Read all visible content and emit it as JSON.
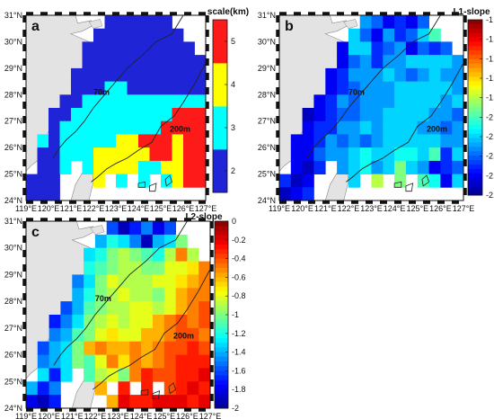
{
  "axes": {
    "lat_ticks": [
      "24°N",
      "25°N",
      "26°N",
      "27°N",
      "28°N",
      "29°N",
      "30°N",
      "31°N"
    ],
    "lon_ticks": [
      "119°E",
      "120°E",
      "121°E",
      "122°E",
      "123°E",
      "124°E",
      "125°E",
      "126°E",
      "127°E"
    ]
  },
  "isobaths": {
    "inner": "70m",
    "outer": "200m"
  },
  "colors": {
    "land": "#e3e3e3",
    "coast": "#8a8a8a",
    "frame_dark": "#111111",
    "scale_palette": [
      "#1f24d6",
      "#00ffff",
      "#ffff00",
      "#ff1a1a"
    ]
  },
  "chart_data": [
    {
      "panel": "a",
      "type": "heatmap",
      "colorbar_title": "scale(km)",
      "colorbar_ticks": [
        "2",
        "3",
        "4",
        "5"
      ],
      "xlim": [
        119,
        127
      ],
      "ylim": [
        24,
        31
      ],
      "grid_x": [
        119.5,
        120,
        120.5,
        121,
        121.5,
        122,
        122.5,
        123,
        123.5,
        124,
        124.5,
        125,
        125.5,
        126,
        126.5,
        127
      ],
      "grid_y": [
        30.75,
        30.25,
        29.75,
        29.25,
        28.75,
        28.25,
        27.75,
        27.25,
        26.75,
        26.25,
        25.75,
        25.25,
        24.75,
        24.25
      ],
      "values": [
        [
          null,
          null,
          null,
          null,
          null,
          null,
          null,
          2,
          2,
          2,
          2,
          2,
          2,
          null,
          null,
          null
        ],
        [
          null,
          null,
          null,
          null,
          null,
          null,
          2,
          2,
          2,
          2,
          2,
          2,
          2,
          2,
          null,
          null
        ],
        [
          null,
          null,
          null,
          null,
          null,
          2,
          2,
          2,
          2,
          2,
          2,
          2,
          2,
          2,
          2,
          null
        ],
        [
          null,
          null,
          null,
          null,
          null,
          2,
          2,
          2,
          2,
          2,
          2,
          2,
          2,
          2,
          2,
          2
        ],
        [
          null,
          null,
          null,
          null,
          2,
          2,
          2,
          2,
          2,
          2,
          2,
          2,
          2,
          2,
          2,
          2
        ],
        [
          null,
          null,
          null,
          null,
          2,
          2,
          2,
          3,
          3,
          2,
          2,
          2,
          2,
          2,
          2,
          2
        ],
        [
          null,
          null,
          null,
          2,
          2,
          3,
          3,
          3,
          3,
          3,
          3,
          3,
          3,
          3,
          3,
          3
        ],
        [
          null,
          null,
          2,
          2,
          3,
          3,
          3,
          3,
          3,
          3,
          3,
          3,
          3,
          5,
          5,
          5
        ],
        [
          null,
          null,
          2,
          3,
          3,
          3,
          3,
          3,
          3,
          3,
          3,
          3,
          5,
          5,
          5,
          5
        ],
        [
          null,
          3,
          2,
          3,
          3,
          3,
          3,
          3,
          4,
          4,
          5,
          5,
          5,
          4,
          5,
          5
        ],
        [
          null,
          2,
          2,
          3,
          3,
          3,
          4,
          4,
          4,
          4,
          4,
          5,
          5,
          4,
          5,
          5
        ],
        [
          null,
          2,
          2,
          3,
          null,
          3,
          4,
          4,
          4,
          4,
          3,
          3,
          4,
          4,
          5,
          5
        ],
        [
          2,
          2,
          2,
          null,
          null,
          null,
          4,
          null,
          3,
          null,
          3,
          null,
          3,
          4,
          5,
          5
        ],
        [
          2,
          2,
          2,
          null,
          null,
          null,
          null,
          null,
          null,
          null,
          null,
          null,
          null,
          null,
          null,
          null
        ]
      ]
    },
    {
      "panel": "b",
      "type": "heatmap",
      "colorbar_title": "L1-slope",
      "colorbar_ticks": [
        "-1",
        "-1.2",
        "-1.4",
        "-1.6",
        "-1.8",
        "-2",
        "-2.2",
        "-2.4",
        "-2.6",
        "-2.8"
      ],
      "xlim": [
        119,
        127
      ],
      "ylim": [
        24,
        31
      ],
      "grid_x": [
        119.5,
        120,
        120.5,
        121,
        121.5,
        122,
        122.5,
        123,
        123.5,
        124,
        124.5,
        125,
        125.5,
        126,
        126.5,
        127
      ],
      "grid_y": [
        30.75,
        30.25,
        29.75,
        29.25,
        28.75,
        28.25,
        27.75,
        27.25,
        26.75,
        26.25,
        25.75,
        25.25,
        24.75,
        24.25
      ],
      "values": [
        [
          null,
          null,
          null,
          null,
          null,
          null,
          null,
          -2.3,
          -2.4,
          -2.6,
          -2.5,
          -2.6,
          -2.4,
          null,
          null,
          null
        ],
        [
          null,
          null,
          null,
          null,
          null,
          null,
          -2.2,
          -2.4,
          -2.6,
          -2.3,
          -2.5,
          -2.4,
          -2.2,
          -2.0,
          null,
          null
        ],
        [
          null,
          null,
          null,
          null,
          null,
          -2.6,
          -2.2,
          -2.2,
          -2.5,
          -2.4,
          -2.3,
          -2.6,
          -2.4,
          -2.5,
          -2.4,
          null
        ],
        [
          null,
          null,
          null,
          null,
          null,
          -2.6,
          -2.4,
          -2.3,
          -2.5,
          -2.3,
          -2.3,
          -2.2,
          -2.2,
          -2.2,
          -2.2,
          -2.3
        ],
        [
          null,
          null,
          null,
          null,
          -2.6,
          -2.5,
          -2.3,
          -2.3,
          -2.3,
          -2.2,
          -2.3,
          -2.4,
          -2.3,
          -2.2,
          -2.3,
          -2.3
        ],
        [
          null,
          null,
          null,
          null,
          -2.6,
          -2.5,
          -2.4,
          -2.3,
          -2.3,
          -2.3,
          -2.2,
          -2.2,
          -2.2,
          -2.2,
          -2.2,
          -2.3
        ],
        [
          null,
          null,
          null,
          -2.6,
          -2.5,
          -2.3,
          -2.4,
          -2.3,
          -2.3,
          -2.3,
          -2.2,
          -2.2,
          -2.2,
          -2.2,
          -2.3,
          -2.2
        ],
        [
          null,
          null,
          -2.7,
          -2.6,
          -2.5,
          -2.4,
          -2.4,
          -2.3,
          -2.3,
          -2.2,
          -2.2,
          -2.2,
          -2.2,
          -2.3,
          -2.3,
          -2.4
        ],
        [
          null,
          null,
          -2.6,
          -2.5,
          -2.5,
          -2.3,
          -2.3,
          -2.2,
          -2.3,
          -2.2,
          -2.2,
          -2.2,
          -2.3,
          -2.3,
          -2.4,
          -2.3
        ],
        [
          null,
          -2.6,
          -2.6,
          -2.5,
          -2.3,
          -2.4,
          -2.3,
          -2.4,
          -2.3,
          -2.2,
          -2.2,
          -2.2,
          -2.2,
          -2.2,
          -2.3,
          -2.3
        ],
        [
          null,
          -2.6,
          -2.6,
          -2.4,
          -2.3,
          -2.3,
          -2.2,
          -2.1,
          -2.2,
          -2.2,
          -2.1,
          -2.1,
          -2.2,
          -2.0,
          -2.5,
          -2.2
        ],
        [
          null,
          -2.6,
          -2.7,
          -2.5,
          null,
          -2.3,
          -2.2,
          -2.1,
          -2.3,
          -2.2,
          -1.9,
          -2.2,
          -2.3,
          -2.6,
          -2.5,
          -2.4
        ],
        [
          -2.5,
          -2.7,
          -2.6,
          null,
          null,
          null,
          -2.2,
          null,
          -1.8,
          null,
          -1.9,
          null,
          -2.0,
          -2.1,
          -2.6,
          -2.2
        ],
        [
          -2.7,
          -2.6,
          -2.5,
          null,
          null,
          null,
          null,
          null,
          null,
          null,
          null,
          null,
          null,
          null,
          null,
          null
        ]
      ]
    },
    {
      "panel": "c",
      "type": "heatmap",
      "colorbar_title": "L2-slope",
      "colorbar_ticks": [
        "0",
        "-0.2",
        "-0.4",
        "-0.6",
        "-0.8",
        "-1",
        "-1.2",
        "-1.4",
        "-1.6",
        "-1.8",
        "-2"
      ],
      "xlim": [
        119,
        127
      ],
      "ylim": [
        24,
        31
      ],
      "grid_x": [
        119.5,
        120,
        120.5,
        121,
        121.5,
        122,
        122.5,
        123,
        123.5,
        124,
        124.5,
        125,
        125.5,
        126,
        126.5,
        127
      ],
      "grid_y": [
        30.75,
        30.25,
        29.75,
        29.25,
        28.75,
        28.25,
        27.75,
        27.25,
        26.75,
        26.25,
        25.75,
        25.25,
        24.75,
        24.25
      ],
      "values": [
        [
          null,
          null,
          null,
          null,
          null,
          null,
          null,
          -1.6,
          -1.9,
          -1.7,
          -1.5,
          -1.8,
          -1.6,
          null,
          null,
          null
        ],
        [
          null,
          null,
          null,
          null,
          null,
          null,
          -1.4,
          -1.2,
          -1.3,
          -1.5,
          -1.9,
          -1.4,
          -1.3,
          -1.0,
          null,
          null
        ],
        [
          null,
          null,
          null,
          null,
          null,
          -1.3,
          -1.2,
          -1.0,
          -0.9,
          -1.0,
          -1.1,
          -1.2,
          -0.9,
          -0.5,
          -0.9,
          null
        ],
        [
          null,
          null,
          null,
          null,
          null,
          -1.2,
          -1.1,
          -1.0,
          -0.9,
          -0.9,
          -1.0,
          -1.0,
          -0.8,
          -0.8,
          -0.7,
          -0.5
        ],
        [
          null,
          null,
          null,
          null,
          -1.5,
          -1.3,
          -1.0,
          -0.8,
          -0.9,
          -0.9,
          -0.9,
          -0.8,
          -0.8,
          -0.7,
          -0.6,
          -0.5
        ],
        [
          null,
          null,
          null,
          null,
          -1.4,
          -1.2,
          -1.0,
          -0.9,
          -0.8,
          -0.9,
          -0.9,
          -1.0,
          -0.8,
          -0.6,
          -0.5,
          -0.5
        ],
        [
          null,
          null,
          null,
          -1.6,
          -1.4,
          -1.1,
          -1.0,
          -0.9,
          -0.9,
          -0.8,
          -0.8,
          -0.9,
          -0.8,
          -0.6,
          -0.5,
          -0.4
        ],
        [
          null,
          null,
          -1.7,
          -1.5,
          -1.3,
          -1.0,
          -0.9,
          -0.8,
          -0.9,
          -0.8,
          -0.8,
          -0.6,
          -0.5,
          -0.4,
          -0.5,
          -0.4
        ],
        [
          null,
          null,
          -1.5,
          -1.4,
          -1.1,
          -1.0,
          -0.8,
          -0.7,
          -0.8,
          -0.8,
          -0.6,
          -0.6,
          -0.5,
          -0.4,
          -0.4,
          -0.5
        ],
        [
          null,
          -1.6,
          -1.4,
          -1.3,
          -1.0,
          -0.6,
          -0.5,
          -0.6,
          -0.6,
          -0.5,
          -0.6,
          -0.5,
          -0.4,
          -0.4,
          -0.3,
          -0.4
        ],
        [
          null,
          -1.5,
          -1.4,
          -1.3,
          -1.0,
          -1.1,
          -0.8,
          -0.5,
          -0.7,
          -0.5,
          -0.6,
          -0.5,
          -0.4,
          -0.3,
          -0.3,
          -0.3
        ],
        [
          null,
          -1.3,
          -1.7,
          -1.3,
          null,
          -1.1,
          -0.9,
          -0.8,
          -1.0,
          -0.5,
          -0.3,
          -0.4,
          -0.4,
          -0.3,
          -0.3,
          -0.2
        ],
        [
          -1.4,
          -1.7,
          -1.5,
          null,
          null,
          null,
          -0.6,
          null,
          -0.3,
          null,
          -0.3,
          null,
          -0.4,
          -0.3,
          -0.2,
          -0.3
        ],
        [
          -1.8,
          -1.9,
          -1.7,
          null,
          null,
          null,
          null,
          -0.6,
          -0.2,
          -0.3,
          -0.3,
          -0.2,
          -0.2,
          -0.2,
          -0.3,
          -0.2
        ]
      ]
    }
  ]
}
